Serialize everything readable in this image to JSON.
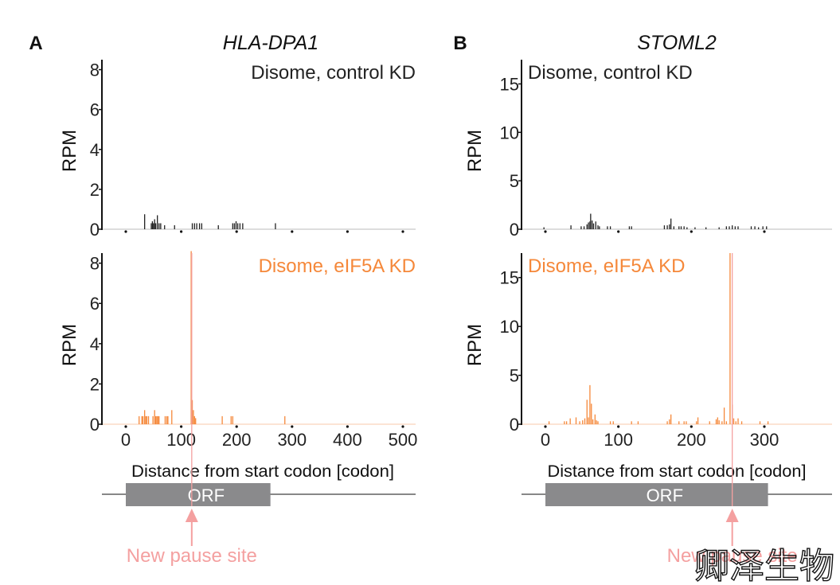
{
  "colors": {
    "control": "#222222",
    "eif5a": "#f5883a",
    "pause": "#f4a0a0",
    "orf": "#8a8a8c",
    "axis": "#bbbbbb"
  },
  "watermark": "卿泽生物",
  "chart_data": [
    {
      "type": "bar",
      "panel_label": "A",
      "title": "HLA-DPA1",
      "xlabel": "Distance from start codon [codon]",
      "ylabel": "RPM",
      "xlim": [
        -40,
        520
      ],
      "xticks": [
        0,
        100,
        200,
        300,
        400,
        500
      ],
      "ylim": [
        0,
        8.5
      ],
      "yticks": [
        0,
        2,
        4,
        6,
        8
      ],
      "orf": {
        "label": "ORF",
        "start": 0,
        "end": 261
      },
      "pause": {
        "label": "New pause site",
        "codon": 119
      },
      "series": [
        {
          "name": "Disome, control KD",
          "color": "#222222",
          "x": [
            34,
            46,
            48,
            50,
            52,
            54,
            57,
            60,
            63,
            70,
            88,
            120,
            124,
            128,
            133,
            137,
            167,
            193,
            196,
            199,
            202,
            206,
            211,
            270
          ],
          "y": [
            0.75,
            0.3,
            0.4,
            0.3,
            0.5,
            0.3,
            0.7,
            0.3,
            0.3,
            0.2,
            0.2,
            0.3,
            0.3,
            0.3,
            0.3,
            0.3,
            0.2,
            0.3,
            0.3,
            0.4,
            0.3,
            0.3,
            0.3,
            0.3
          ]
        },
        {
          "name": "Disome, eIF5A KD",
          "color": "#f5883a",
          "x": [
            24,
            29,
            31,
            34,
            36,
            38,
            41,
            49,
            52,
            54,
            56,
            58,
            60,
            71,
            74,
            76,
            83,
            118,
            120,
            122,
            124,
            126,
            174,
            190,
            193,
            287
          ],
          "y": [
            0.4,
            0.4,
            0.4,
            0.7,
            0.4,
            0.4,
            0.4,
            0.4,
            0.7,
            0.4,
            0.4,
            0.4,
            0.4,
            0.4,
            0.4,
            0.4,
            0.7,
            8.6,
            1.2,
            0.7,
            0.4,
            0.3,
            0.4,
            0.4,
            0.4,
            0.4
          ]
        }
      ]
    },
    {
      "type": "bar",
      "panel_label": "B",
      "title": "STOML2",
      "xlabel": "Distance from start codon [codon]",
      "ylabel": "RPM",
      "xlim": [
        -30,
        395
      ],
      "xticks": [
        0,
        100,
        200,
        300
      ],
      "ylim": [
        0,
        17.5
      ],
      "yticks": [
        0,
        5,
        10,
        15
      ],
      "orf": {
        "label": "ORF",
        "start": 0,
        "end": 305
      },
      "pause": {
        "label": "New pause site",
        "codon": 256
      },
      "series": [
        {
          "name": "Disome, control KD",
          "color": "#222222",
          "x": [
            -2,
            35,
            49,
            53,
            57,
            59,
            61,
            62,
            64,
            66,
            69,
            72,
            74,
            85,
            89,
            115,
            118,
            163,
            167,
            170,
            172,
            176,
            183,
            186,
            190,
            194,
            205,
            220,
            238,
            248,
            252,
            256,
            260,
            264,
            282,
            287,
            292,
            298,
            303
          ],
          "y": [
            0.2,
            0.4,
            0.3,
            0.3,
            0.5,
            0.7,
            0.8,
            1.6,
            0.9,
            0.6,
            0.8,
            0.4,
            0.3,
            0.3,
            0.3,
            0.3,
            0.3,
            0.4,
            0.4,
            0.5,
            1.1,
            0.3,
            0.3,
            0.3,
            0.3,
            0.2,
            0.2,
            0.2,
            0.2,
            0.3,
            0.3,
            0.4,
            0.3,
            0.3,
            0.3,
            0.3,
            0.2,
            0.3,
            0.3
          ]
        },
        {
          "name": "Disome, eIF5A KD",
          "color": "#f5883a",
          "x": [
            5,
            26,
            29,
            34,
            42,
            47,
            51,
            54,
            57,
            59,
            61,
            63,
            65,
            68,
            70,
            72,
            89,
            93,
            118,
            127,
            167,
            170,
            172,
            183,
            190,
            193,
            207,
            209,
            225,
            234,
            236,
            238,
            242,
            245,
            248,
            253,
            256,
            258,
            261,
            264,
            269,
            294,
            305
          ],
          "y": [
            0.3,
            0.3,
            0.3,
            0.6,
            0.7,
            0.3,
            0.4,
            0.6,
            2.5,
            0.7,
            4.0,
            2.1,
            0.5,
            1.0,
            0.4,
            0.3,
            0.3,
            0.3,
            0.3,
            0.3,
            0.3,
            0.5,
            1.0,
            0.3,
            0.3,
            0.3,
            0.3,
            0.7,
            0.3,
            0.5,
            0.7,
            0.4,
            0.3,
            1.7,
            0.3,
            17.5,
            2.0,
            0.6,
            0.3,
            0.6,
            0.3,
            0.3,
            0.3
          ]
        }
      ]
    }
  ]
}
